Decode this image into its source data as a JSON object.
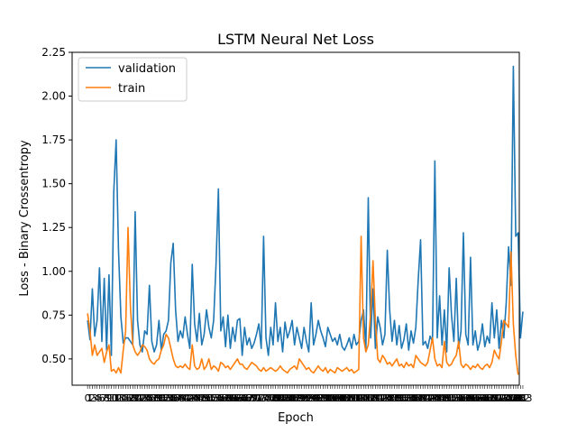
{
  "chart_data": {
    "type": "line",
    "title": "LSTM Neural Net Loss",
    "xlabel": "Epoch",
    "ylabel": "Loss - Binary Crossentropy",
    "xlim": [
      -6.5,
      181.5
    ],
    "ylim": [
      0.35,
      2.25
    ],
    "y_ticks": [
      "0.50",
      "0.75",
      "1.00",
      "1.25",
      "1.50",
      "1.75",
      "2.00",
      "2.25"
    ],
    "x_ticks": "0 to 175, every epoch (labels overlap)",
    "legend": {
      "placement": "top-left"
    },
    "grid": false,
    "series": [
      {
        "name": "validation",
        "color": "#1f77b4",
        "values": [
          0.72,
          0.61,
          0.9,
          0.63,
          0.72,
          1.02,
          0.6,
          0.96,
          0.55,
          0.98,
          0.52,
          1.45,
          1.75,
          1.12,
          0.74,
          0.59,
          0.62,
          0.62,
          0.6,
          0.58,
          1.34,
          0.72,
          0.58,
          0.54,
          0.66,
          0.64,
          0.92,
          0.6,
          0.54,
          0.58,
          0.72,
          0.55,
          0.64,
          0.66,
          0.72,
          1.05,
          1.16,
          0.78,
          0.6,
          0.66,
          0.62,
          0.74,
          0.64,
          0.56,
          1.04,
          0.7,
          0.6,
          0.76,
          0.58,
          0.64,
          0.78,
          0.68,
          0.62,
          0.72,
          1.04,
          1.47,
          0.66,
          0.74,
          0.57,
          0.75,
          0.56,
          0.68,
          0.6,
          0.72,
          0.73,
          0.52,
          0.68,
          0.58,
          0.62,
          0.56,
          0.59,
          0.64,
          0.7,
          0.56,
          1.2,
          0.62,
          0.52,
          0.68,
          0.58,
          0.82,
          0.6,
          0.68,
          0.54,
          0.71,
          0.62,
          0.66,
          0.72,
          0.58,
          0.68,
          0.62,
          0.56,
          0.68,
          0.6,
          0.54,
          0.82,
          0.58,
          0.64,
          0.72,
          0.66,
          0.62,
          0.57,
          0.68,
          0.64,
          0.6,
          0.62,
          0.58,
          0.64,
          0.57,
          0.55,
          0.58,
          0.62,
          0.56,
          0.64,
          0.58,
          0.6,
          0.72,
          0.78,
          0.56,
          1.42,
          0.62,
          0.9,
          0.56,
          0.74,
          0.68,
          0.58,
          0.64,
          1.12,
          0.78,
          0.6,
          0.72,
          0.58,
          0.69,
          0.56,
          0.61,
          0.7,
          0.55,
          0.66,
          0.59,
          0.68,
          0.95,
          1.18,
          0.58,
          0.6,
          0.56,
          0.63,
          0.6,
          1.63,
          0.62,
          0.86,
          0.58,
          0.78,
          0.54,
          1.02,
          0.75,
          0.6,
          0.96,
          0.56,
          0.66,
          1.22,
          0.64,
          0.58,
          1.08,
          0.58,
          0.66,
          0.55,
          0.6,
          0.7,
          0.57,
          0.63,
          0.59,
          0.82,
          0.62,
          0.78,
          0.56,
          0.72,
          0.62,
          0.82,
          1.14,
          0.92,
          2.17,
          1.2,
          1.22,
          0.62,
          0.77
        ]
      },
      {
        "name": "train",
        "color": "#ff7f0e",
        "values": [
          0.76,
          0.66,
          0.52,
          0.58,
          0.52,
          0.54,
          0.56,
          0.48,
          0.54,
          0.58,
          0.43,
          0.44,
          0.42,
          0.45,
          0.42,
          0.55,
          0.66,
          1.25,
          0.8,
          0.58,
          0.54,
          0.52,
          0.54,
          0.58,
          0.57,
          0.55,
          0.5,
          0.48,
          0.47,
          0.49,
          0.5,
          0.55,
          0.58,
          0.64,
          0.62,
          0.56,
          0.5,
          0.46,
          0.45,
          0.46,
          0.45,
          0.47,
          0.45,
          0.44,
          0.58,
          0.46,
          0.44,
          0.45,
          0.5,
          0.44,
          0.46,
          0.5,
          0.44,
          0.46,
          0.45,
          0.43,
          0.48,
          0.47,
          0.45,
          0.46,
          0.44,
          0.46,
          0.48,
          0.5,
          0.47,
          0.47,
          0.45,
          0.44,
          0.46,
          0.48,
          0.47,
          0.46,
          0.44,
          0.43,
          0.45,
          0.43,
          0.44,
          0.45,
          0.44,
          0.43,
          0.44,
          0.46,
          0.44,
          0.43,
          0.42,
          0.44,
          0.45,
          0.46,
          0.44,
          0.5,
          0.48,
          0.46,
          0.44,
          0.45,
          0.43,
          0.42,
          0.44,
          0.46,
          0.44,
          0.43,
          0.45,
          0.42,
          0.44,
          0.43,
          0.42,
          0.45,
          0.44,
          0.43,
          0.44,
          0.45,
          0.43,
          0.44,
          0.42,
          0.43,
          0.44,
          1.2,
          0.62,
          0.54,
          0.58,
          0.76,
          1.06,
          0.72,
          0.5,
          0.48,
          0.52,
          0.5,
          0.47,
          0.48,
          0.46,
          0.48,
          0.5,
          0.46,
          0.47,
          0.45,
          0.48,
          0.46,
          0.47,
          0.45,
          0.52,
          0.5,
          0.48,
          0.47,
          0.46,
          0.48,
          0.55,
          0.62,
          0.5,
          0.46,
          0.47,
          0.45,
          0.6,
          0.48,
          0.46,
          0.47,
          0.5,
          0.52,
          0.6,
          0.47,
          0.45,
          0.47,
          0.46,
          0.44,
          0.46,
          0.45,
          0.47,
          0.45,
          0.44,
          0.46,
          0.47,
          0.45,
          0.48,
          0.55,
          0.52,
          0.5,
          0.6,
          0.72,
          0.7,
          0.68,
          1.11,
          0.7,
          0.52,
          0.41
        ]
      }
    ]
  }
}
